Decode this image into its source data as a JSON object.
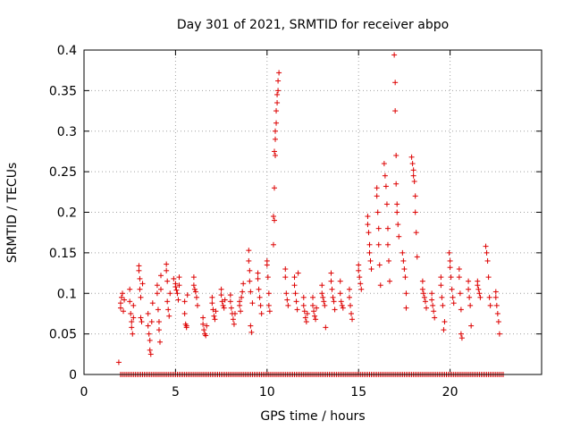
{
  "chart_data": {
    "type": "scatter",
    "title": "Day 301 of 2021, SRMTID for receiver abpo",
    "xlabel": "GPS time / hours",
    "ylabel": "SRMTID / TECUs",
    "xlim": [
      0,
      25
    ],
    "ylim": [
      0,
      0.4
    ],
    "xticks": [
      0,
      5,
      10,
      15,
      20
    ],
    "xtick_labels": [
      "0",
      "5",
      "10",
      "15",
      "20"
    ],
    "yticks": [
      0,
      0.05,
      0.1,
      0.15,
      0.2,
      0.25,
      0.3,
      0.35,
      0.4
    ],
    "ytick_labels": [
      "0",
      "0.05",
      "0.1",
      "0.15",
      "0.2",
      "0.25",
      "0.3",
      "0.35",
      "0.4"
    ],
    "grid": true,
    "marker": "+",
    "color": "#dd0000",
    "series": [
      {
        "name": "SRMTID",
        "points": [
          [
            1.9,
            0.015
          ],
          [
            2.0,
            0.088
          ],
          [
            2.0,
            0.082
          ],
          [
            2.05,
            0.095
          ],
          [
            2.1,
            0.1
          ],
          [
            2.15,
            0.078
          ],
          [
            2.2,
            0.092
          ],
          [
            2.5,
            0.105
          ],
          [
            2.5,
            0.09
          ],
          [
            2.55,
            0.075
          ],
          [
            2.6,
            0.065
          ],
          [
            2.6,
            0.058
          ],
          [
            2.65,
            0.05
          ],
          [
            2.7,
            0.07
          ],
          [
            2.7,
            0.085
          ],
          [
            3.0,
            0.134
          ],
          [
            3.0,
            0.128
          ],
          [
            3.05,
            0.118
          ],
          [
            3.05,
            0.105
          ],
          [
            3.1,
            0.095
          ],
          [
            3.1,
            0.07
          ],
          [
            3.15,
            0.065
          ],
          [
            3.2,
            0.112
          ],
          [
            3.5,
            0.075
          ],
          [
            3.5,
            0.06
          ],
          [
            3.55,
            0.05
          ],
          [
            3.6,
            0.042
          ],
          [
            3.6,
            0.03
          ],
          [
            3.65,
            0.025
          ],
          [
            3.7,
            0.065
          ],
          [
            3.75,
            0.088
          ],
          [
            4.0,
            0.11
          ],
          [
            4.0,
            0.1
          ],
          [
            4.05,
            0.08
          ],
          [
            4.1,
            0.065
          ],
          [
            4.1,
            0.055
          ],
          [
            4.15,
            0.04
          ],
          [
            4.2,
            0.105
          ],
          [
            4.2,
            0.122
          ],
          [
            4.5,
            0.136
          ],
          [
            4.5,
            0.128
          ],
          [
            4.55,
            0.115
          ],
          [
            4.55,
            0.09
          ],
          [
            4.6,
            0.08
          ],
          [
            4.65,
            0.072
          ],
          [
            4.7,
            0.1
          ],
          [
            4.9,
            0.118
          ],
          [
            5.0,
            0.112
          ],
          [
            5.0,
            0.108
          ],
          [
            5.05,
            0.104
          ],
          [
            5.1,
            0.1
          ],
          [
            5.15,
            0.092
          ],
          [
            5.2,
            0.11
          ],
          [
            5.2,
            0.12
          ],
          [
            5.5,
            0.09
          ],
          [
            5.5,
            0.075
          ],
          [
            5.55,
            0.062
          ],
          [
            5.6,
            0.058
          ],
          [
            5.6,
            0.06
          ],
          [
            5.65,
            0.098
          ],
          [
            6.0,
            0.12
          ],
          [
            6.0,
            0.11
          ],
          [
            6.05,
            0.105
          ],
          [
            6.1,
            0.102
          ],
          [
            6.15,
            0.095
          ],
          [
            6.2,
            0.085
          ],
          [
            6.5,
            0.07
          ],
          [
            6.5,
            0.062
          ],
          [
            6.55,
            0.055
          ],
          [
            6.6,
            0.05
          ],
          [
            6.65,
            0.048
          ],
          [
            6.7,
            0.06
          ],
          [
            7.0,
            0.095
          ],
          [
            7.0,
            0.088
          ],
          [
            7.05,
            0.08
          ],
          [
            7.1,
            0.072
          ],
          [
            7.15,
            0.068
          ],
          [
            7.2,
            0.078
          ],
          [
            7.5,
            0.105
          ],
          [
            7.5,
            0.098
          ],
          [
            7.55,
            0.09
          ],
          [
            7.6,
            0.085
          ],
          [
            7.65,
            0.082
          ],
          [
            7.7,
            0.092
          ],
          [
            8.0,
            0.098
          ],
          [
            8.0,
            0.09
          ],
          [
            8.05,
            0.082
          ],
          [
            8.1,
            0.075
          ],
          [
            8.15,
            0.068
          ],
          [
            8.2,
            0.062
          ],
          [
            8.25,
            0.075
          ],
          [
            8.5,
            0.09
          ],
          [
            8.5,
            0.085
          ],
          [
            8.55,
            0.078
          ],
          [
            8.6,
            0.095
          ],
          [
            8.65,
            0.102
          ],
          [
            8.7,
            0.112
          ],
          [
            9.0,
            0.153
          ],
          [
            9.0,
            0.14
          ],
          [
            9.05,
            0.128
          ],
          [
            9.05,
            0.115
          ],
          [
            9.1,
            0.102
          ],
          [
            9.1,
            0.06
          ],
          [
            9.15,
            0.052
          ],
          [
            9.2,
            0.088
          ],
          [
            9.5,
            0.125
          ],
          [
            9.5,
            0.118
          ],
          [
            9.55,
            0.105
          ],
          [
            9.6,
            0.095
          ],
          [
            9.65,
            0.085
          ],
          [
            9.7,
            0.075
          ],
          [
            10.0,
            0.14
          ],
          [
            10.0,
            0.135
          ],
          [
            10.05,
            0.12
          ],
          [
            10.1,
            0.1
          ],
          [
            10.1,
            0.085
          ],
          [
            10.15,
            0.078
          ],
          [
            10.35,
            0.16
          ],
          [
            10.35,
            0.195
          ],
          [
            10.4,
            0.19
          ],
          [
            10.4,
            0.23
          ],
          [
            10.4,
            0.275
          ],
          [
            10.45,
            0.27
          ],
          [
            10.45,
            0.29
          ],
          [
            10.45,
            0.3
          ],
          [
            10.5,
            0.31
          ],
          [
            10.5,
            0.325
          ],
          [
            10.55,
            0.335
          ],
          [
            10.55,
            0.345
          ],
          [
            10.6,
            0.35
          ],
          [
            10.6,
            0.362
          ],
          [
            10.65,
            0.372
          ],
          [
            11.0,
            0.13
          ],
          [
            11.0,
            0.12
          ],
          [
            11.05,
            0.1
          ],
          [
            11.1,
            0.092
          ],
          [
            11.15,
            0.085
          ],
          [
            11.5,
            0.12
          ],
          [
            11.5,
            0.11
          ],
          [
            11.55,
            0.1
          ],
          [
            11.6,
            0.09
          ],
          [
            11.65,
            0.08
          ],
          [
            11.7,
            0.125
          ],
          [
            12.0,
            0.095
          ],
          [
            12.0,
            0.085
          ],
          [
            12.05,
            0.078
          ],
          [
            12.1,
            0.07
          ],
          [
            12.15,
            0.065
          ],
          [
            12.2,
            0.075
          ],
          [
            12.5,
            0.095
          ],
          [
            12.5,
            0.085
          ],
          [
            12.55,
            0.078
          ],
          [
            12.6,
            0.072
          ],
          [
            12.65,
            0.068
          ],
          [
            12.7,
            0.082
          ],
          [
            13.0,
            0.11
          ],
          [
            13.0,
            0.1
          ],
          [
            13.05,
            0.095
          ],
          [
            13.1,
            0.09
          ],
          [
            13.15,
            0.085
          ],
          [
            13.2,
            0.058
          ],
          [
            13.5,
            0.125
          ],
          [
            13.5,
            0.115
          ],
          [
            13.55,
            0.105
          ],
          [
            13.6,
            0.095
          ],
          [
            13.65,
            0.09
          ],
          [
            13.7,
            0.08
          ],
          [
            14.0,
            0.115
          ],
          [
            14.0,
            0.1
          ],
          [
            14.05,
            0.09
          ],
          [
            14.1,
            0.085
          ],
          [
            14.15,
            0.082
          ],
          [
            14.5,
            0.105
          ],
          [
            14.5,
            0.095
          ],
          [
            14.55,
            0.085
          ],
          [
            14.6,
            0.075
          ],
          [
            14.65,
            0.068
          ],
          [
            15.0,
            0.135
          ],
          [
            15.0,
            0.128
          ],
          [
            15.05,
            0.12
          ],
          [
            15.1,
            0.112
          ],
          [
            15.15,
            0.105
          ],
          [
            15.5,
            0.195
          ],
          [
            15.5,
            0.185
          ],
          [
            15.55,
            0.175
          ],
          [
            15.6,
            0.16
          ],
          [
            15.6,
            0.15
          ],
          [
            15.65,
            0.14
          ],
          [
            15.7,
            0.13
          ],
          [
            16.0,
            0.23
          ],
          [
            16.0,
            0.22
          ],
          [
            16.05,
            0.2
          ],
          [
            16.1,
            0.18
          ],
          [
            16.1,
            0.16
          ],
          [
            16.15,
            0.135
          ],
          [
            16.2,
            0.11
          ],
          [
            16.4,
            0.26
          ],
          [
            16.45,
            0.245
          ],
          [
            16.5,
            0.232
          ],
          [
            16.55,
            0.21
          ],
          [
            16.6,
            0.18
          ],
          [
            16.6,
            0.16
          ],
          [
            16.65,
            0.14
          ],
          [
            16.7,
            0.115
          ],
          [
            16.95,
            0.394
          ],
          [
            17.0,
            0.36
          ],
          [
            17.0,
            0.325
          ],
          [
            17.05,
            0.27
          ],
          [
            17.05,
            0.235
          ],
          [
            17.1,
            0.21
          ],
          [
            17.1,
            0.2
          ],
          [
            17.15,
            0.185
          ],
          [
            17.2,
            0.17
          ],
          [
            17.4,
            0.15
          ],
          [
            17.45,
            0.14
          ],
          [
            17.5,
            0.13
          ],
          [
            17.55,
            0.12
          ],
          [
            17.6,
            0.1
          ],
          [
            17.6,
            0.082
          ],
          [
            17.9,
            0.268
          ],
          [
            17.95,
            0.26
          ],
          [
            18.0,
            0.252
          ],
          [
            18.0,
            0.245
          ],
          [
            18.05,
            0.238
          ],
          [
            18.1,
            0.22
          ],
          [
            18.1,
            0.2
          ],
          [
            18.15,
            0.175
          ],
          [
            18.2,
            0.145
          ],
          [
            18.5,
            0.115
          ],
          [
            18.5,
            0.105
          ],
          [
            18.55,
            0.1
          ],
          [
            18.6,
            0.095
          ],
          [
            18.65,
            0.09
          ],
          [
            18.7,
            0.082
          ],
          [
            19.0,
            0.1
          ],
          [
            19.0,
            0.092
          ],
          [
            19.05,
            0.085
          ],
          [
            19.1,
            0.078
          ],
          [
            19.15,
            0.07
          ],
          [
            19.5,
            0.12
          ],
          [
            19.5,
            0.11
          ],
          [
            19.55,
            0.095
          ],
          [
            19.6,
            0.085
          ],
          [
            19.65,
            0.055
          ],
          [
            19.7,
            0.065
          ],
          [
            19.95,
            0.15
          ],
          [
            20.0,
            0.14
          ],
          [
            20.0,
            0.132
          ],
          [
            20.05,
            0.12
          ],
          [
            20.1,
            0.105
          ],
          [
            20.15,
            0.095
          ],
          [
            20.2,
            0.088
          ],
          [
            20.5,
            0.13
          ],
          [
            20.5,
            0.12
          ],
          [
            20.55,
            0.1
          ],
          [
            20.6,
            0.08
          ],
          [
            20.6,
            0.05
          ],
          [
            20.65,
            0.045
          ],
          [
            21.0,
            0.115
          ],
          [
            21.0,
            0.105
          ],
          [
            21.05,
            0.095
          ],
          [
            21.1,
            0.085
          ],
          [
            21.15,
            0.06
          ],
          [
            21.5,
            0.115
          ],
          [
            21.5,
            0.11
          ],
          [
            21.55,
            0.105
          ],
          [
            21.6,
            0.1
          ],
          [
            21.65,
            0.095
          ],
          [
            21.95,
            0.158
          ],
          [
            22.0,
            0.15
          ],
          [
            22.05,
            0.14
          ],
          [
            22.1,
            0.12
          ],
          [
            22.15,
            0.095
          ],
          [
            22.2,
            0.085
          ],
          [
            22.5,
            0.102
          ],
          [
            22.5,
            0.095
          ],
          [
            22.55,
            0.085
          ],
          [
            22.6,
            0.075
          ],
          [
            22.65,
            0.065
          ],
          [
            22.7,
            0.05
          ]
        ]
      }
    ],
    "zero_segments": [
      [
        2.0,
        22.9
      ]
    ]
  }
}
